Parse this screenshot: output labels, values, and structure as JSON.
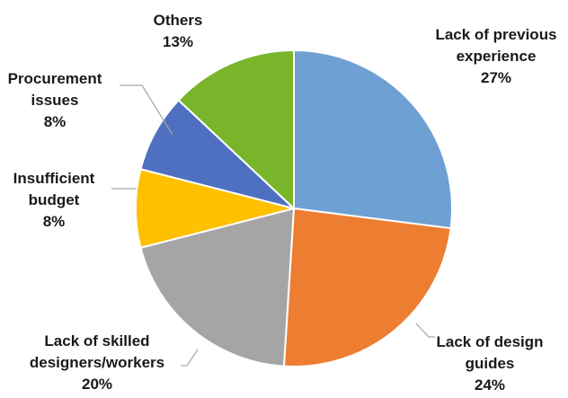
{
  "chart_data": {
    "type": "pie",
    "title": "",
    "slices": [
      {
        "label": "Lack of previous experience",
        "lines": [
          "Lack of previous",
          "experience"
        ],
        "value": 27,
        "percent_text": "27%",
        "color": "#6fa0d3"
      },
      {
        "label": "Lack of design guides",
        "lines": [
          "Lack of design",
          "guides"
        ],
        "value": 24,
        "percent_text": "24%",
        "color": "#ed7d31"
      },
      {
        "label": "Lack of skilled designers/workers",
        "lines": [
          "Lack of skilled",
          "designers/workers"
        ],
        "value": 20,
        "percent_text": "20%",
        "color": "#a5a5a5"
      },
      {
        "label": "Insufficient budget",
        "lines": [
          "Insufficient",
          "budget"
        ],
        "value": 8,
        "percent_text": "8%",
        "color": "#ffc000"
      },
      {
        "label": "Procurement issues",
        "lines": [
          "Procurement",
          "issues"
        ],
        "value": 8,
        "percent_text": "8%",
        "color": "#4f6fc0"
      },
      {
        "label": "Others",
        "lines": [
          "Others"
        ],
        "value": 13,
        "percent_text": "13%",
        "color": "#78b52a"
      }
    ]
  }
}
